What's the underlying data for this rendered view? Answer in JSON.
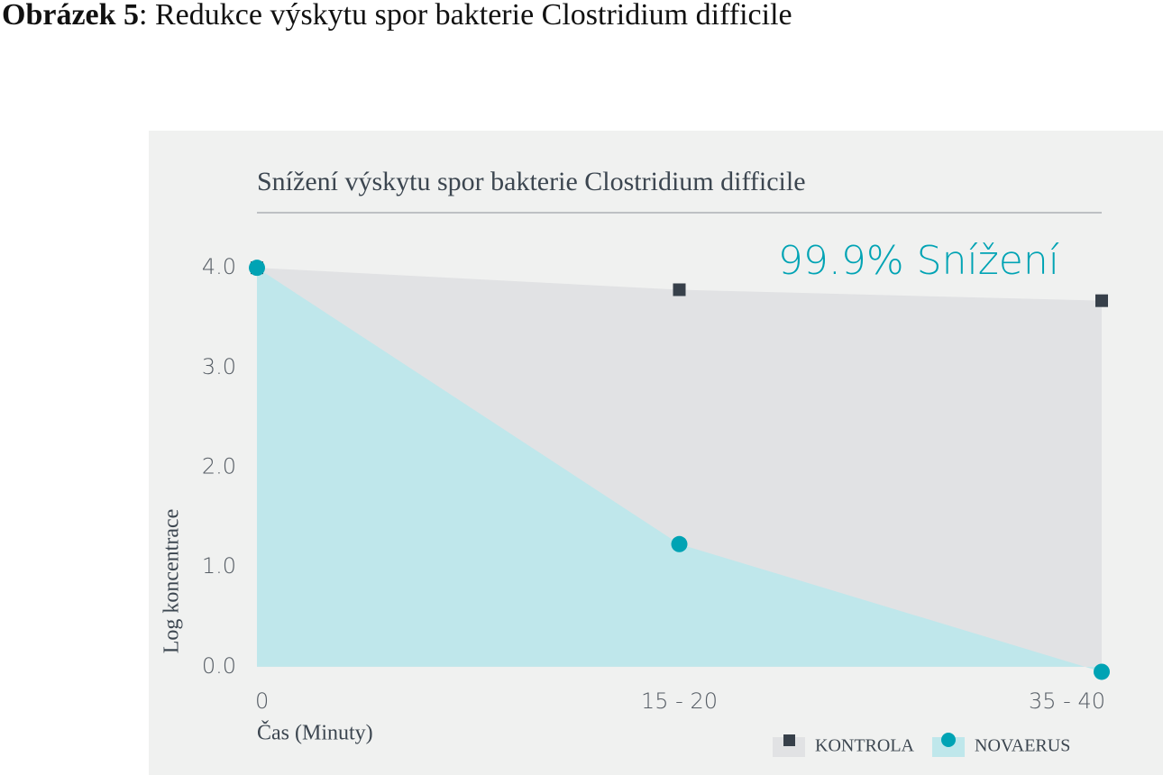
{
  "caption": {
    "label": "Obrázek 5",
    "text": ": Redukce výskytu spor bakterie Clostridium difficile"
  },
  "chart_data": {
    "type": "area",
    "title": "Snížení výskytu spor bakterie Clostridium difficile",
    "annotation": "99.9% Snížení",
    "y_label": "Log koncentrace",
    "x_label": "Čas (Minuty)",
    "categories": [
      "0",
      "15 - 20",
      "35 - 40"
    ],
    "series": [
      {
        "name": "KONTROLA",
        "color": "#37404a",
        "fill": "#e1e2e4",
        "marker": "square",
        "values": [
          4.0,
          3.78,
          3.67
        ]
      },
      {
        "name": "NOVAERUS",
        "color": "#00a3b4",
        "fill": "#bfe7eb",
        "marker": "circle",
        "values": [
          4.0,
          1.23,
          -0.05
        ]
      }
    ],
    "ylim": [
      -0.1,
      4.2
    ],
    "yticks": [
      {
        "value": 0,
        "label": "0.0"
      },
      {
        "value": 1,
        "label": "1.0"
      },
      {
        "value": 2,
        "label": "2.0"
      },
      {
        "value": 3,
        "label": "3.0"
      },
      {
        "value": 4,
        "label": "4.0"
      }
    ],
    "legend": "bottom-right"
  }
}
